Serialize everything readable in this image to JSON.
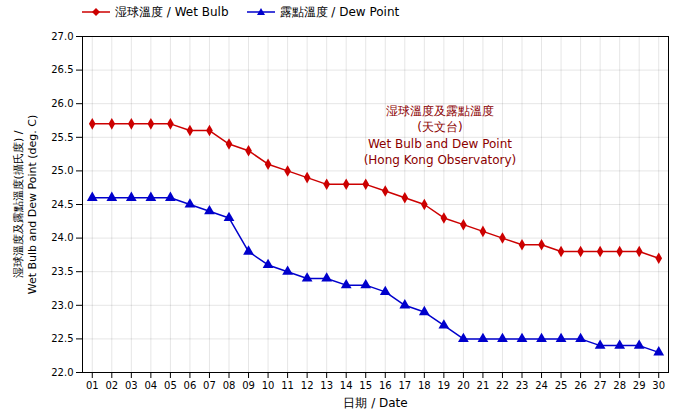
{
  "chart_data": {
    "type": "line",
    "x_label": "日期 / Date",
    "y_label": "湿球溫度及露點溫度(攝氏度) /\nWet Bulb and Dew Point (deg. C)",
    "annotations": [
      {
        "text": "湿球溫度及露點溫度\n(天文台)\nWet Bulb and Dew Point\n(Hong Kong Observatory)",
        "color": "#8b0000"
      }
    ],
    "x": [
      1,
      2,
      3,
      4,
      5,
      6,
      7,
      8,
      9,
      10,
      11,
      12,
      13,
      14,
      15,
      16,
      17,
      18,
      19,
      20,
      21,
      22,
      23,
      24,
      25,
      26,
      27,
      28,
      29,
      30
    ],
    "series": [
      {
        "name": "湿球溫度 / Wet Bulb",
        "color": "#cc0000",
        "marker": "diamond",
        "values": [
          25.7,
          25.7,
          25.7,
          25.7,
          25.7,
          25.6,
          25.6,
          25.4,
          25.3,
          25.1,
          25.0,
          24.9,
          24.8,
          24.8,
          24.8,
          24.7,
          24.6,
          24.5,
          24.3,
          24.2,
          24.1,
          24.0,
          23.9,
          23.9,
          23.8,
          23.8,
          23.8,
          23.8,
          23.8,
          23.7
        ]
      },
      {
        "name": "露點溫度 / Dew Point",
        "color": "#0000cc",
        "marker": "triangle",
        "values": [
          24.6,
          24.6,
          24.6,
          24.6,
          24.6,
          24.5,
          24.4,
          24.3,
          23.8,
          23.6,
          23.5,
          23.4,
          23.4,
          23.3,
          23.3,
          23.2,
          23.0,
          22.9,
          22.7,
          22.5,
          22.5,
          22.5,
          22.5,
          22.5,
          22.5,
          22.5,
          22.4,
          22.4,
          22.4,
          22.3
        ]
      }
    ],
    "xlim": [
      0.5,
      30.5
    ],
    "xticks": [
      {
        "value": 1,
        "label": "01"
      },
      {
        "value": 2,
        "label": "02"
      },
      {
        "value": 3,
        "label": "03"
      },
      {
        "value": 4,
        "label": "04"
      },
      {
        "value": 5,
        "label": "05"
      },
      {
        "value": 6,
        "label": "06"
      },
      {
        "value": 7,
        "label": "07"
      },
      {
        "value": 8,
        "label": "08"
      },
      {
        "value": 9,
        "label": "09"
      },
      10,
      11,
      12,
      13,
      14,
      15,
      16,
      17,
      18,
      19,
      20,
      21,
      22,
      23,
      24,
      25,
      26,
      27,
      28,
      29,
      30
    ],
    "ylim": [
      22.0,
      27.0
    ],
    "yticks": [
      {
        "value": 22.0,
        "label": "22.0"
      },
      22.5,
      {
        "value": 23.0,
        "label": "23.0"
      },
      23.5,
      {
        "value": 24.0,
        "label": "24.0"
      },
      24.5,
      {
        "value": 25.0,
        "label": "25.0"
      },
      25.5,
      {
        "value": 26.0,
        "label": "26.0"
      },
      26.5,
      {
        "value": 27.0,
        "label": "27.0"
      }
    ],
    "grid": true,
    "legend": "upper left"
  }
}
